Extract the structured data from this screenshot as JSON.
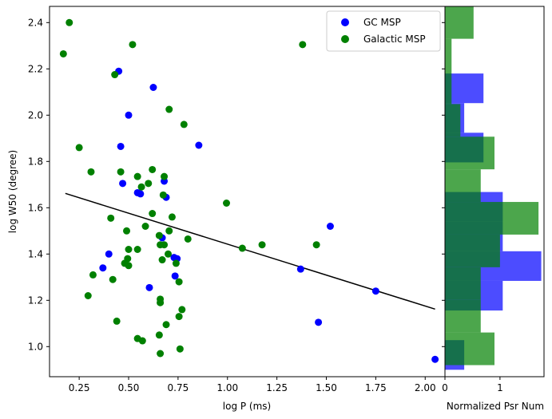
{
  "chart_data": [
    {
      "type": "scatter",
      "xlabel": "log P (ms)",
      "ylabel": "log W50 (degree)",
      "xlim": [
        0.1,
        2.1
      ],
      "ylim": [
        0.87,
        2.47
      ],
      "xticks": [
        0.25,
        0.5,
        0.75,
        1.0,
        1.25,
        1.5,
        1.75,
        2.0
      ],
      "xtick_labels": [
        "0.25",
        "0.50",
        "0.75",
        "1.00",
        "1.25",
        "1.50",
        "1.75",
        "2.00"
      ],
      "yticks": [
        1.0,
        1.2,
        1.4,
        1.6,
        1.8,
        2.0,
        2.2,
        2.4
      ],
      "ytick_labels": [
        "1.0",
        "1.2",
        "1.4",
        "1.6",
        "1.8",
        "2.0",
        "2.2",
        "2.4"
      ],
      "legend_position": "top-right",
      "series": [
        {
          "name": "GC MSP",
          "color": "#0000ff",
          "points": [
            [
              0.45,
              2.19
            ],
            [
              0.625,
              2.12
            ],
            [
              0.5,
              2.0
            ],
            [
              0.855,
              1.87
            ],
            [
              0.46,
              1.865
            ],
            [
              0.47,
              1.705
            ],
            [
              0.68,
              1.715
            ],
            [
              0.545,
              1.665
            ],
            [
              0.56,
              1.66
            ],
            [
              0.69,
              1.645
            ],
            [
              1.52,
              1.52
            ],
            [
              0.67,
              1.47
            ],
            [
              0.4,
              1.4
            ],
            [
              0.73,
              1.385
            ],
            [
              0.745,
              1.38
            ],
            [
              0.37,
              1.34
            ],
            [
              1.37,
              1.335
            ],
            [
              0.735,
              1.305
            ],
            [
              0.605,
              1.255
            ],
            [
              1.75,
              1.24
            ],
            [
              1.46,
              1.105
            ],
            [
              2.05,
              0.945
            ]
          ]
        },
        {
          "name": "Galactic MSP",
          "color": "#008000",
          "points": [
            [
              0.2,
              2.4
            ],
            [
              0.17,
              2.265
            ],
            [
              0.52,
              2.305
            ],
            [
              1.38,
              2.305
            ],
            [
              0.43,
              2.175
            ],
            [
              0.705,
              2.025
            ],
            [
              0.78,
              1.96
            ],
            [
              0.25,
              1.86
            ],
            [
              0.31,
              1.755
            ],
            [
              0.46,
              1.755
            ],
            [
              0.62,
              1.765
            ],
            [
              0.545,
              1.735
            ],
            [
              0.68,
              1.735
            ],
            [
              0.6,
              1.705
            ],
            [
              0.565,
              1.69
            ],
            [
              0.675,
              1.655
            ],
            [
              0.995,
              1.62
            ],
            [
              0.62,
              1.575
            ],
            [
              0.72,
              1.56
            ],
            [
              0.41,
              1.555
            ],
            [
              0.585,
              1.52
            ],
            [
              0.705,
              1.5
            ],
            [
              0.49,
              1.5
            ],
            [
              0.655,
              1.48
            ],
            [
              0.8,
              1.465
            ],
            [
              0.66,
              1.44
            ],
            [
              0.68,
              1.44
            ],
            [
              1.175,
              1.44
            ],
            [
              1.45,
              1.44
            ],
            [
              1.075,
              1.425
            ],
            [
              0.5,
              1.42
            ],
            [
              0.545,
              1.42
            ],
            [
              0.7,
              1.4
            ],
            [
              0.495,
              1.38
            ],
            [
              0.67,
              1.375
            ],
            [
              0.48,
              1.36
            ],
            [
              0.74,
              1.36
            ],
            [
              0.5,
              1.35
            ],
            [
              0.32,
              1.31
            ],
            [
              0.42,
              1.29
            ],
            [
              0.755,
              1.28
            ],
            [
              0.295,
              1.22
            ],
            [
              0.66,
              1.205
            ],
            [
              0.66,
              1.19
            ],
            [
              0.77,
              1.16
            ],
            [
              0.755,
              1.13
            ],
            [
              0.44,
              1.11
            ],
            [
              0.69,
              1.095
            ],
            [
              0.655,
              1.05
            ],
            [
              0.545,
              1.035
            ],
            [
              0.57,
              1.025
            ],
            [
              0.76,
              0.99
            ],
            [
              0.66,
              0.97
            ]
          ]
        }
      ],
      "fit_line": {
        "color": "#000000",
        "x": [
          0.18,
          2.05
        ],
        "y": [
          1.662,
          1.162
        ]
      }
    },
    {
      "type": "bar",
      "orientation": "horizontal",
      "xlabel": "Normalized Psr Num",
      "xlim": [
        0,
        1.8
      ],
      "ylim": [
        0.87,
        2.47
      ],
      "xticks": [
        0,
        1
      ],
      "xtick_labels": [
        "0",
        "1"
      ],
      "series": [
        {
          "name": "GC MSP",
          "color": "#0000ff",
          "alpha": 0.7,
          "bins": [
            [
              0.9,
              1.028,
              0.35
            ],
            [
              1.028,
              1.156,
              0.0
            ],
            [
              1.156,
              1.284,
              1.05
            ],
            [
              1.284,
              1.412,
              1.75
            ],
            [
              1.412,
              1.54,
              1.05
            ],
            [
              1.54,
              1.668,
              1.05
            ],
            [
              1.668,
              1.796,
              0.0
            ],
            [
              1.796,
              1.924,
              0.7
            ],
            [
              1.924,
              2.052,
              0.35
            ],
            [
              2.052,
              2.18,
              0.7
            ],
            [
              2.18,
              2.308,
              0.0
            ],
            [
              2.308,
              2.436,
              0.0
            ]
          ]
        },
        {
          "name": "Galactic MSP",
          "color": "#008000",
          "alpha": 0.7,
          "bins": [
            [
              0.92,
              1.061,
              0.9
            ],
            [
              1.061,
              1.202,
              0.65
            ],
            [
              1.202,
              1.343,
              0.65
            ],
            [
              1.343,
              1.484,
              1.0
            ],
            [
              1.484,
              1.625,
              1.7
            ],
            [
              1.625,
              1.766,
              0.65
            ],
            [
              1.766,
              1.907,
              0.9
            ],
            [
              1.907,
              2.048,
              0.28
            ],
            [
              2.048,
              2.189,
              0.12
            ],
            [
              2.189,
              2.33,
              0.12
            ],
            [
              2.33,
              2.47,
              0.52
            ]
          ]
        }
      ]
    }
  ]
}
